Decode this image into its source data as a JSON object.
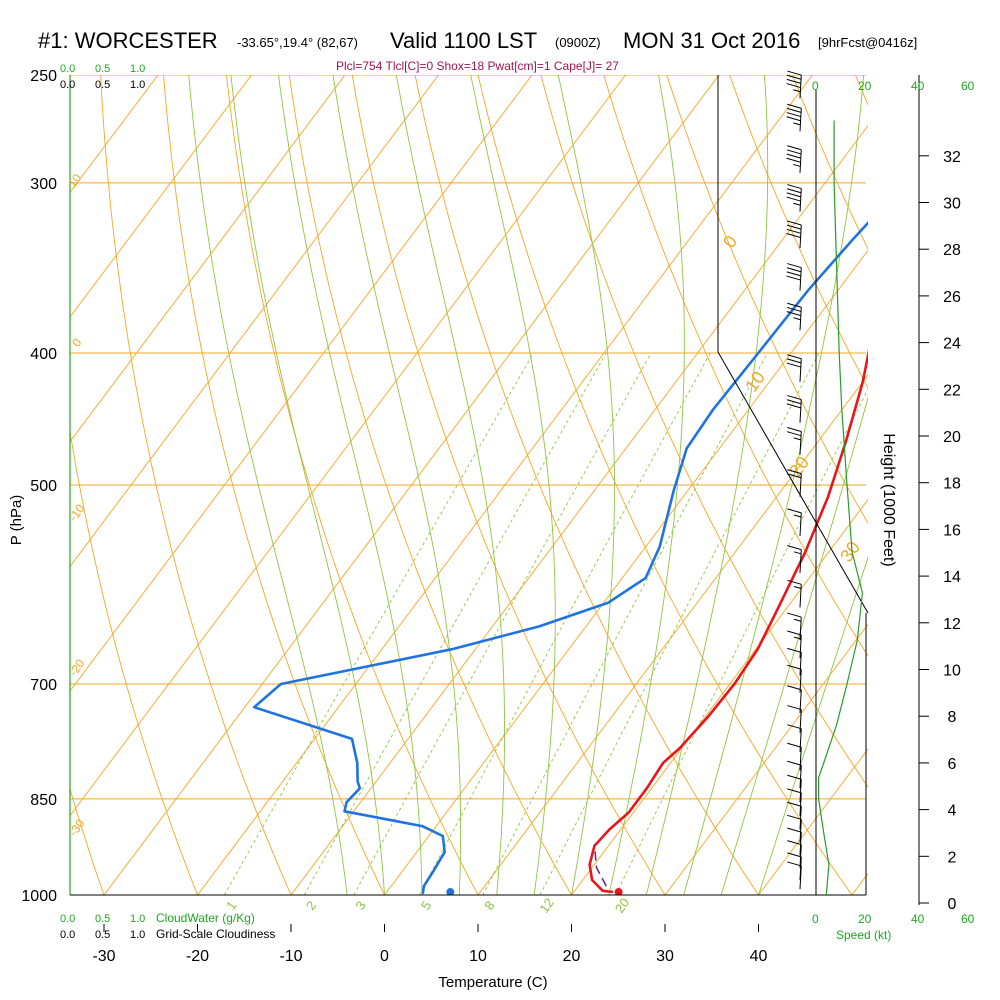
{
  "title": {
    "station": "#1: WORCESTER",
    "coords": "-33.65°,19.4° (82,67)",
    "valid": "Valid 1100 LST",
    "utc": "(0900Z)",
    "date": "MON 31 Oct 2016",
    "forecast": "[9hrFcst@0416z]"
  },
  "indices": "Plcl=754 Tlcl[C]=0 Shox=18 Pwat[cm]=1 Cape[J]= 27",
  "cloud_scale": {
    "green_values": [
      "0.0",
      "0.5",
      "1.0"
    ],
    "black_values": [
      "0.0",
      "0.5",
      "1.0"
    ],
    "bottom_green_label": "CloudWater (g/Kg)",
    "bottom_black_label": "Grid-Scale Cloudiness"
  },
  "wind_speed_axis": {
    "ticks": [
      "0",
      "20",
      "40",
      "60"
    ],
    "label": "Speed (kt)"
  },
  "colors": {
    "isobar": "#f5a623",
    "isotherm": "#f5a623",
    "dry_adiabat": "#f5a623",
    "moist_adiabat": "#8dc63f",
    "mixing_ratio": "#8dc63f",
    "temperature": "#e8161a",
    "dewpoint": "#1f73e0",
    "parcel": "#5a2a8a",
    "cloud_axis": "#1ea81e",
    "wind_speed": "#2a9a2a",
    "indices_text": "#a0154f"
  },
  "chart_data": {
    "type": "line",
    "xlabel": "Temperature (C)",
    "ylabel": "P (hPa)",
    "y2label": "Height (1000 Feet)",
    "xlim": [
      -33,
      48
    ],
    "ylim": [
      1000,
      250
    ],
    "x_ticks": [
      -30,
      -20,
      -10,
      0,
      10,
      20,
      30,
      40
    ],
    "p_ticks": [
      250,
      300,
      400,
      500,
      700,
      850,
      1000
    ],
    "height_ticks": [
      0,
      2,
      4,
      6,
      8,
      10,
      12,
      14,
      16,
      18,
      20,
      22,
      24,
      26,
      28,
      30,
      32
    ],
    "dry_adiabat_labels": [
      {
        "text": "10",
        "p": 300
      },
      {
        "text": "0",
        "p": 400
      },
      {
        "text": "-10",
        "p": 500
      },
      {
        "text": "-20",
        "p": 700
      },
      {
        "text": "-30",
        "p": 850
      },
      {
        "text": "0",
        "p": 335
      },
      {
        "text": "10",
        "p": 415
      },
      {
        "text": "20",
        "p": 480
      },
      {
        "text": "30",
        "p": 565
      }
    ],
    "mixing_ratio_labels": [
      "1",
      "2",
      "3",
      "5",
      "8",
      "12",
      "20"
    ],
    "series": [
      {
        "name": "Temperature",
        "points": [
          [
            24.2,
            995
          ],
          [
            23.0,
            993
          ],
          [
            21.0,
            975
          ],
          [
            19.5,
            950
          ],
          [
            18.5,
            920
          ],
          [
            18.8,
            895
          ],
          [
            19.5,
            870
          ],
          [
            19.5,
            835
          ],
          [
            19.2,
            800
          ],
          [
            19.8,
            780
          ],
          [
            20.3,
            740
          ],
          [
            20.5,
            700
          ],
          [
            20.2,
            660
          ],
          [
            19.2,
            620
          ],
          [
            17.5,
            560
          ],
          [
            15.5,
            510
          ],
          [
            13.0,
            465
          ],
          [
            10.0,
            420
          ],
          [
            6.5,
            380
          ],
          [
            3.5,
            345
          ],
          [
            1.0,
            320
          ],
          [
            -0.5,
            300
          ],
          [
            -1.5,
            285
          ],
          [
            -2.2,
            265
          ]
        ]
      },
      {
        "name": "Dewpoint",
        "points": [
          [
            4.0,
            998
          ],
          [
            3.5,
            985
          ],
          [
            3.3,
            960
          ],
          [
            3.0,
            930
          ],
          [
            1.5,
            905
          ],
          [
            -1.5,
            890
          ],
          [
            -11.0,
            868
          ],
          [
            -11.5,
            855
          ],
          [
            -11.2,
            835
          ],
          [
            -12.0,
            825
          ],
          [
            -13.5,
            800
          ],
          [
            -16.0,
            768
          ],
          [
            -29.0,
            728
          ],
          [
            -28.0,
            700
          ],
          [
            -12.5,
            660
          ],
          [
            -5.0,
            635
          ],
          [
            0.5,
            610
          ],
          [
            2.5,
            585
          ],
          [
            1.5,
            555
          ],
          [
            -1.5,
            505
          ],
          [
            -3.5,
            470
          ],
          [
            -3.8,
            440
          ],
          [
            -3.5,
            400
          ],
          [
            -3.2,
            360
          ],
          [
            -2.5,
            330
          ],
          [
            -1.8,
            310
          ],
          [
            -2.0,
            300
          ],
          [
            -6.5,
            258
          ]
        ]
      },
      {
        "name": "Parcel",
        "points": [
          [
            23.0,
            985
          ],
          [
            20.5,
            955
          ],
          [
            18.5,
            920
          ]
        ]
      }
    ],
    "surface_points": [
      {
        "name": "temperature",
        "t": 24.8,
        "p": 995
      },
      {
        "name": "dewpoint",
        "t": 6.8,
        "p": 995
      }
    ],
    "wind_barbs": [
      {
        "p": 260,
        "speed": 45
      },
      {
        "p": 275,
        "speed": 45
      },
      {
        "p": 295,
        "speed": 45
      },
      {
        "p": 315,
        "speed": 45
      },
      {
        "p": 335,
        "speed": 40
      },
      {
        "p": 360,
        "speed": 40
      },
      {
        "p": 385,
        "speed": 35
      },
      {
        "p": 420,
        "speed": 30
      },
      {
        "p": 450,
        "speed": 30
      },
      {
        "p": 475,
        "speed": 25
      },
      {
        "p": 510,
        "speed": 20
      },
      {
        "p": 545,
        "speed": 15
      },
      {
        "p": 580,
        "speed": 15
      },
      {
        "p": 615,
        "speed": 15
      },
      {
        "p": 650,
        "speed": 15
      },
      {
        "p": 670,
        "speed": 15
      },
      {
        "p": 690,
        "speed": 10
      },
      {
        "p": 710,
        "speed": 10
      },
      {
        "p": 735,
        "speed": 10
      },
      {
        "p": 760,
        "speed": 10
      },
      {
        "p": 785,
        "speed": 10
      },
      {
        "p": 810,
        "speed": 10
      },
      {
        "p": 835,
        "speed": 10
      },
      {
        "p": 855,
        "speed": 10
      },
      {
        "p": 875,
        "speed": 10
      },
      {
        "p": 895,
        "speed": 10
      },
      {
        "p": 915,
        "speed": 10
      },
      {
        "p": 935,
        "speed": 10
      },
      {
        "p": 955,
        "speed": 10
      },
      {
        "p": 975,
        "speed": 10
      },
      {
        "p": 990,
        "speed": 10
      }
    ],
    "wind_speed_profile": [
      [
        4,
        1000
      ],
      [
        5,
        950
      ],
      [
        3,
        900
      ],
      [
        1,
        850
      ],
      [
        1,
        820
      ],
      [
        3,
        800
      ],
      [
        8,
        750
      ],
      [
        12,
        700
      ],
      [
        16,
        650
      ],
      [
        18,
        600
      ],
      [
        14,
        560
      ],
      [
        12,
        500
      ],
      [
        10,
        440
      ],
      [
        9,
        400
      ],
      [
        7,
        300
      ],
      [
        7,
        270
      ]
    ]
  }
}
